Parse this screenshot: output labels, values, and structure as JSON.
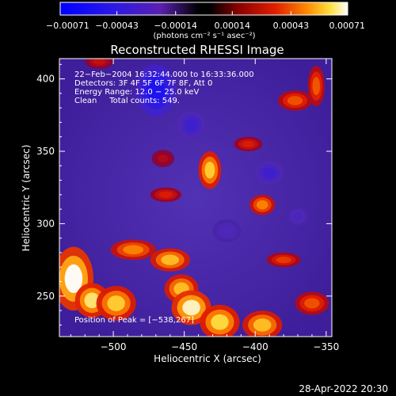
{
  "chart_data": {
    "type": "heatmap",
    "title": "Reconstructed RHESSI Image",
    "xlabel": "Heliocentric X (arcsec)",
    "ylabel": "Heliocentric Y (arcsec)",
    "xlim": [
      -538,
      -346
    ],
    "ylim": [
      222,
      414
    ],
    "xticks": [
      -500,
      -450,
      -400,
      -350
    ],
    "xtick_labels": [
      "−500",
      "−450",
      "−400",
      "−350"
    ],
    "yticks": [
      250,
      300,
      350,
      400
    ],
    "ytick_labels": [
      "250",
      "300",
      "350",
      "400"
    ],
    "colorbar": {
      "range": [
        -0.00071,
        0.00071
      ],
      "ticks": [
        -0.00071,
        -0.00043,
        -0.00014,
        0.00014,
        0.00043,
        0.00071
      ],
      "tick_labels": [
        "−0.00071",
        "−0.00043",
        "−0.00014",
        "0.00014",
        "0.00043",
        "0.00071"
      ],
      "unit_label": "(photons cm⁻² s⁻¹ asec⁻²)"
    },
    "annotations": [
      "22−Feb−2004 16:32:44.000 to 16:33:36.000",
      "Detectors: 3F 4F 5F 6F 7F 8F, Att 0",
      "Energy Range: 12.0 − 25.0 keV",
      "Clean     Total counts: 549."
    ],
    "peak_label": "Position of Peak = [−538,267]",
    "peak": [
      -538,
      267
    ],
    "hotspots": [
      {
        "x": -528,
        "y": 262,
        "value": 0.00071,
        "rx": 14,
        "ry": 22
      },
      {
        "x": -515,
        "y": 247,
        "value": 0.00066,
        "rx": 12,
        "ry": 12
      },
      {
        "x": -498,
        "y": 245,
        "value": 0.00062,
        "rx": 14,
        "ry": 12
      },
      {
        "x": -486,
        "y": 282,
        "value": 0.00052,
        "rx": 16,
        "ry": 7
      },
      {
        "x": -460,
        "y": 275,
        "value": 0.0006,
        "rx": 14,
        "ry": 8
      },
      {
        "x": -452,
        "y": 255,
        "value": 0.0006,
        "rx": 12,
        "ry": 10
      },
      {
        "x": -445,
        "y": 242,
        "value": 0.00069,
        "rx": 14,
        "ry": 12
      },
      {
        "x": -425,
        "y": 232,
        "value": 0.00064,
        "rx": 14,
        "ry": 12
      },
      {
        "x": -395,
        "y": 230,
        "value": 0.0006,
        "rx": 14,
        "ry": 10
      },
      {
        "x": -432,
        "y": 337,
        "value": 0.00062,
        "rx": 8,
        "ry": 13
      },
      {
        "x": -395,
        "y": 313,
        "value": 0.00052,
        "rx": 9,
        "ry": 7
      },
      {
        "x": -372,
        "y": 385,
        "value": 0.00044,
        "rx": 12,
        "ry": 7
      },
      {
        "x": -357,
        "y": 395,
        "value": 0.00045,
        "rx": 6,
        "ry": 14
      },
      {
        "x": -405,
        "y": 355,
        "value": 0.00034,
        "rx": 10,
        "ry": 5
      },
      {
        "x": -463,
        "y": 320,
        "value": 0.00034,
        "rx": 11,
        "ry": 5
      },
      {
        "x": -380,
        "y": 275,
        "value": 0.0004,
        "rx": 12,
        "ry": 5
      },
      {
        "x": -465,
        "y": 345,
        "value": 0.00024,
        "rx": 8,
        "ry": 6
      },
      {
        "x": -510,
        "y": 412,
        "value": 0.00028,
        "rx": 10,
        "ry": 5
      },
      {
        "x": -360,
        "y": 245,
        "value": 0.00044,
        "rx": 12,
        "ry": 8
      },
      {
        "x": -470,
        "y": 392,
        "value": -0.0005,
        "rx": 14,
        "ry": 18
      },
      {
        "x": -445,
        "y": 368,
        "value": -0.0003,
        "rx": 10,
        "ry": 10
      },
      {
        "x": -390,
        "y": 335,
        "value": -0.0003,
        "rx": 10,
        "ry": 8
      },
      {
        "x": -370,
        "y": 305,
        "value": -0.00022,
        "rx": 8,
        "ry": 7
      },
      {
        "x": -420,
        "y": 295,
        "value": -0.0002,
        "rx": 10,
        "ry": 8
      }
    ]
  },
  "footer": {
    "timestamp": "28-Apr-2022 20:30"
  }
}
